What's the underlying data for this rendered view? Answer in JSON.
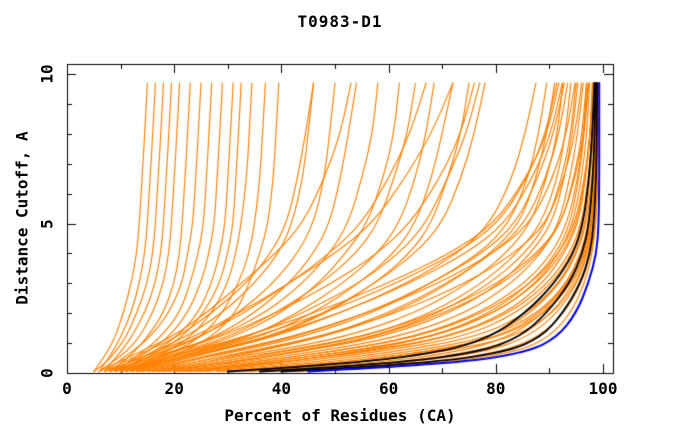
{
  "title": "T0983-D1",
  "colors": {
    "model": "#FF8000",
    "highlight": "#000000",
    "best": "#0000EE",
    "frame": "#000000",
    "background": "#FFFFFF"
  },
  "chart_data": {
    "type": "line",
    "title": "T0983-D1",
    "xlabel": "Percent of Residues (CA)",
    "ylabel": "Distance Cutoff, A",
    "xlim": [
      0,
      101.9
    ],
    "ylim": [
      0,
      10.33
    ],
    "x_major_ticks": [
      0,
      20,
      40,
      60,
      80,
      100
    ],
    "x_minor_ticks": [
      10,
      30,
      50,
      70,
      90
    ],
    "y_major_ticks": [
      0,
      5,
      10
    ],
    "y_minor_ticks": [
      1,
      2,
      3,
      4,
      6,
      7,
      8,
      9
    ],
    "grid": false,
    "legend": false,
    "distance_grid": [
      0.05,
      0.3,
      0.7,
      1.2,
      2,
      3,
      4,
      5,
      6.5,
      8,
      9.7
    ],
    "series": [
      {
        "name": "orange-01",
        "color": "model",
        "percents": [
          5,
          6,
          7.5,
          9,
          10.5,
          12,
          13,
          13.5,
          14,
          14.5,
          15
        ]
      },
      {
        "name": "orange-02",
        "color": "model",
        "percents": [
          6,
          7,
          8.5,
          10,
          12,
          13.5,
          14.5,
          15,
          15.5,
          16,
          16.5
        ]
      },
      {
        "name": "orange-03",
        "color": "model",
        "percents": [
          5,
          7,
          9,
          11,
          13,
          15,
          16,
          16.5,
          17,
          17.5,
          18
        ]
      },
      {
        "name": "orange-04",
        "color": "model",
        "percents": [
          7,
          8,
          10,
          12,
          14.5,
          16.5,
          17.5,
          18,
          18.5,
          19,
          19.5
        ]
      },
      {
        "name": "orange-05",
        "color": "model",
        "percents": [
          6,
          8,
          11,
          13.5,
          16,
          18,
          19,
          19.5,
          20,
          20.5,
          21
        ]
      },
      {
        "name": "orange-06",
        "color": "model",
        "percents": [
          8,
          10,
          12.5,
          15,
          18,
          20,
          21,
          21.5,
          22,
          22.5,
          23
        ]
      },
      {
        "name": "orange-07",
        "color": "model",
        "percents": [
          7,
          9,
          12,
          15.5,
          19,
          21.5,
          22.5,
          23.5,
          24,
          24.5,
          25
        ]
      },
      {
        "name": "orange-08",
        "color": "model",
        "percents": [
          9,
          11,
          14,
          17.5,
          21,
          23,
          24.5,
          25.5,
          26,
          26.5,
          27
        ]
      },
      {
        "name": "orange-09",
        "color": "model",
        "percents": [
          8,
          11,
          15,
          19,
          22.5,
          25,
          26.5,
          27.5,
          28,
          28.5,
          29
        ]
      },
      {
        "name": "orange-10",
        "color": "model",
        "percents": [
          10,
          12,
          16,
          20.5,
          24.5,
          27,
          28.5,
          29.5,
          30,
          30.5,
          31
        ]
      },
      {
        "name": "orange-11",
        "color": "model",
        "percents": [
          9,
          12.5,
          17,
          21.5,
          25.5,
          28.5,
          30,
          31,
          31.5,
          32,
          32.5
        ]
      },
      {
        "name": "orange-12",
        "color": "model",
        "percents": [
          11,
          14,
          18.5,
          23,
          27,
          30,
          31.5,
          32.5,
          33.5,
          34,
          34.5
        ]
      },
      {
        "name": "orange-13",
        "color": "model",
        "percents": [
          10,
          14.5,
          20,
          25,
          29,
          32,
          34,
          35,
          36,
          36.5,
          37
        ]
      },
      {
        "name": "orange-14",
        "color": "model",
        "percents": [
          12,
          16,
          21.5,
          27,
          31.5,
          34,
          36,
          37.5,
          38.5,
          39,
          39.5
        ]
      },
      {
        "name": "orange-15",
        "color": "model",
        "percents": [
          8,
          11,
          16,
          22,
          29,
          35,
          39.5,
          42,
          44,
          45,
          46
        ]
      },
      {
        "name": "orange-16",
        "color": "model",
        "percents": [
          9,
          12,
          18,
          25,
          32,
          38.5,
          43,
          46,
          48,
          49,
          50
        ]
      },
      {
        "name": "orange-17",
        "color": "model",
        "percents": [
          10,
          14,
          20,
          27.5,
          35,
          41.5,
          46,
          49,
          51,
          52.5,
          54
        ]
      },
      {
        "name": "orange-18",
        "color": "model",
        "percents": [
          8,
          12.5,
          19,
          28,
          37,
          44,
          49,
          52.5,
          55,
          57,
          58
        ]
      },
      {
        "name": "orange-19",
        "color": "model",
        "percents": [
          11,
          15,
          22,
          31,
          40,
          47,
          52,
          56,
          59,
          61,
          62
        ]
      },
      {
        "name": "orange-20",
        "color": "model",
        "percents": [
          9,
          14,
          21,
          30,
          39,
          47.5,
          54,
          58,
          61,
          63.5,
          65
        ]
      },
      {
        "name": "orange-21",
        "color": "model",
        "percents": [
          12,
          17,
          24,
          34,
          43,
          51.5,
          58,
          62,
          65,
          67,
          68.5
        ]
      },
      {
        "name": "orange-22",
        "color": "model",
        "percents": [
          10,
          15.5,
          25,
          36,
          46,
          54.5,
          61,
          65,
          68,
          70,
          72
        ]
      },
      {
        "name": "orange-23",
        "color": "model",
        "percents": [
          13,
          18,
          27,
          38,
          48.5,
          57.5,
          64,
          68,
          71,
          73.5,
          75
        ]
      },
      {
        "name": "orange-24",
        "color": "model",
        "percents": [
          11,
          16.5,
          26,
          37.5,
          48,
          57.5,
          65,
          70,
          73.5,
          76,
          78
        ]
      },
      {
        "name": "orange-25",
        "color": "model",
        "percents": [
          7,
          10,
          14.5,
          20.5,
          27,
          33.5,
          38,
          41,
          43,
          44.5,
          46
        ]
      },
      {
        "name": "orange-26",
        "color": "model",
        "percents": [
          6,
          9,
          13.5,
          19.5,
          26,
          32.5,
          39,
          44,
          48,
          51,
          53
        ]
      },
      {
        "name": "orange-27",
        "color": "model",
        "percents": [
          8,
          12,
          17.5,
          24.5,
          33,
          41.5,
          49,
          55,
          60,
          64,
          67
        ]
      },
      {
        "name": "orange-28",
        "color": "model",
        "percents": [
          7,
          11,
          16.5,
          23.5,
          32,
          41.5,
          50,
          57,
          63,
          68,
          72
        ]
      },
      {
        "name": "orange-29",
        "color": "model",
        "percents": [
          9,
          13,
          19.5,
          28.5,
          39,
          49.5,
          58,
          64,
          69.5,
          73.5,
          76
        ]
      },
      {
        "name": "orange-30",
        "color": "model",
        "percents": [
          10,
          15,
          23,
          33.5,
          44,
          54.5,
          62,
          67,
          71,
          74.5,
          77
        ]
      },
      {
        "name": "orange-31",
        "color": "model",
        "percents": [
          12,
          18,
          27,
          38.5,
          51,
          63.5,
          73,
          79,
          83,
          85.5,
          87.5
        ]
      },
      {
        "name": "orange-32",
        "color": "model",
        "percents": [
          14,
          20,
          31,
          44,
          57,
          68,
          77,
          82.5,
          86,
          88,
          89.5
        ]
      },
      {
        "name": "orange-33",
        "color": "model",
        "percents": [
          13,
          22,
          34,
          48,
          61,
          71.5,
          79,
          84.5,
          87.5,
          89.5,
          91
        ]
      },
      {
        "name": "orange-34",
        "color": "model",
        "percents": [
          15,
          24,
          37,
          52,
          65,
          75,
          82,
          86.5,
          89.5,
          91.5,
          92.5
        ]
      },
      {
        "name": "orange-35",
        "color": "model",
        "percents": [
          16,
          26,
          40,
          55.5,
          68,
          77.5,
          84,
          88.5,
          91.5,
          93,
          94
        ]
      },
      {
        "name": "orange-36",
        "color": "model",
        "percents": [
          18,
          28,
          43,
          59,
          71.5,
          81,
          86.5,
          90.5,
          92.8,
          94.3,
          95.3
        ]
      },
      {
        "name": "orange-37",
        "color": "model",
        "percents": [
          17,
          30,
          46,
          62,
          74.5,
          83,
          88.5,
          91.8,
          93.8,
          95.3,
          96.3
        ]
      },
      {
        "name": "orange-38",
        "color": "model",
        "percents": [
          20,
          32,
          49,
          65,
          77,
          85.5,
          90.5,
          93.3,
          95.3,
          96.4,
          97
        ]
      },
      {
        "name": "orange-39",
        "color": "model",
        "percents": [
          22,
          35,
          52,
          68,
          80,
          87.5,
          91.8,
          94.4,
          96,
          97,
          97.5
        ]
      },
      {
        "name": "orange-40",
        "color": "model",
        "percents": [
          21,
          37,
          55,
          71,
          82,
          88.8,
          92.8,
          95.4,
          96.8,
          97.6,
          98
        ]
      },
      {
        "name": "orange-41",
        "color": "model",
        "percents": [
          24,
          40,
          58,
          74,
          84,
          90.5,
          94.3,
          96.2,
          97.3,
          98,
          98.4
        ]
      },
      {
        "name": "orange-42",
        "color": "model",
        "percents": [
          26,
          43,
          61,
          76.5,
          86,
          91.8,
          94.9,
          96.7,
          97.6,
          98.25,
          98.65
        ]
      },
      {
        "name": "orange-43",
        "color": "model",
        "percents": [
          28,
          46,
          64,
          79,
          88,
          93.2,
          95.9,
          97.3,
          98.05,
          98.55,
          98.85
        ]
      },
      {
        "name": "orange-44",
        "color": "model",
        "percents": [
          30,
          49,
          67,
          81,
          89.3,
          94.2,
          96.6,
          97.75,
          98.4,
          98.75,
          98.95
        ]
      },
      {
        "name": "orange-45",
        "color": "model",
        "percents": [
          33,
          52,
          70,
          83.5,
          90.8,
          95,
          97,
          98,
          98.6,
          98.9,
          99.05
        ]
      },
      {
        "name": "orange-46",
        "color": "model",
        "percents": [
          25,
          38,
          54,
          68,
          79,
          86.5,
          91.3,
          93.9,
          95.5,
          96.5,
          97.3
        ]
      },
      {
        "name": "orange-47",
        "color": "model",
        "percents": [
          19,
          29,
          43,
          57,
          69.5,
          79,
          85.5,
          89.5,
          92.3,
          94,
          95
        ]
      },
      {
        "name": "orange-48",
        "color": "model",
        "percents": [
          16,
          24,
          35,
          47.5,
          60,
          71,
          79.5,
          85.5,
          89.3,
          91.8,
          93.4
        ]
      },
      {
        "name": "orange-49",
        "color": "model",
        "percents": [
          14,
          20,
          30,
          42.5,
          56,
          68,
          77.5,
          83.8,
          87.8,
          90.8,
          92.8
        ]
      },
      {
        "name": "orange-50",
        "color": "model",
        "percents": [
          12,
          17,
          26,
          37.5,
          51,
          64,
          74.5,
          81.8,
          86.8,
          90.3,
          92.4
        ]
      },
      {
        "name": "orange-51",
        "color": "model",
        "percents": [
          11,
          16,
          24,
          35,
          48,
          61.5,
          72.5,
          80.5,
          85.8,
          89.3,
          91.4
        ]
      },
      {
        "name": "orange-52",
        "color": "model",
        "percents": [
          10,
          14.5,
          22,
          33,
          46,
          60,
          71.5,
          79.8,
          85.6,
          89.6,
          91.8
        ]
      },
      {
        "name": "orange-53",
        "color": "model",
        "percents": [
          13,
          19,
          29,
          42,
          56,
          69.5,
          79.5,
          86.5,
          90.6,
          93.2,
          94.8
        ]
      },
      {
        "name": "orange-54",
        "color": "model",
        "percents": [
          15,
          22,
          33,
          47,
          61.5,
          74.5,
          83.5,
          89.5,
          92.7,
          94.8,
          96
        ]
      },
      {
        "name": "orange-55",
        "color": "model",
        "percents": [
          17,
          26,
          39,
          55,
          69,
          80.5,
          87.7,
          92.2,
          94.8,
          96.4,
          97.3
        ]
      },
      {
        "name": "orange-56",
        "color": "model",
        "percents": [
          20,
          32,
          49,
          65.5,
          77.7,
          86.7,
          91.8,
          94.8,
          96.55,
          97.6,
          98.1
        ]
      },
      {
        "name": "orange-57",
        "color": "model",
        "percents": [
          23,
          37,
          56,
          71.5,
          82.7,
          89.8,
          93.8,
          96,
          97.3,
          98,
          98.45
        ]
      },
      {
        "name": "orange-58",
        "color": "model",
        "percents": [
          31,
          52,
          69,
          79,
          86.5,
          92,
          95.2,
          96.9,
          98,
          98.5,
          98.8
        ]
      },
      {
        "name": "orange-59",
        "color": "model",
        "percents": [
          34,
          56,
          73,
          82.5,
          89,
          93.6,
          96.3,
          97.7,
          98.5,
          98.85,
          99
        ]
      },
      {
        "name": "orange-60",
        "color": "model",
        "percents": [
          38,
          62,
          78,
          86,
          91.5,
          95.2,
          97.2,
          98.2,
          98.8,
          99,
          99.05
        ]
      },
      {
        "name": "orange-61",
        "color": "model",
        "percents": [
          29,
          49,
          67,
          80.5,
          88.5,
          93.4,
          95.9,
          97.4,
          98.3,
          98.7,
          98.9
        ]
      },
      {
        "name": "orange-62",
        "color": "model",
        "percents": [
          18,
          28,
          42,
          57.5,
          70.5,
          81.5,
          88.2,
          92.2,
          94.6,
          96.1,
          96.9
        ]
      },
      {
        "name": "orange-63",
        "color": "model",
        "percents": [
          22,
          34,
          52,
          68.5,
          79.8,
          87.8,
          92.4,
          95.1,
          96.7,
          97.7,
          98.2
        ]
      },
      {
        "name": "orange-64",
        "color": "model",
        "percents": [
          36,
          59,
          76,
          84.5,
          90.5,
          94.5,
          96.8,
          97.9,
          98.6,
          98.9,
          99
        ]
      },
      {
        "name": "orange-65",
        "color": "model",
        "percents": [
          41,
          66,
          81,
          88,
          92.8,
          96,
          97.8,
          98.6,
          99,
          99.05,
          99.1
        ]
      },
      {
        "name": "orange-66",
        "color": "model",
        "percents": [
          43,
          69,
          84,
          90,
          94,
          96.6,
          98,
          98.7,
          99,
          99.05,
          99.05
        ]
      },
      {
        "name": "black-1",
        "color": "highlight",
        "percents": [
          40,
          66,
          82,
          88.5,
          92.5,
          95.8,
          97.6,
          98.3,
          98.7,
          98.85,
          98.9
        ]
      },
      {
        "name": "black-2",
        "color": "highlight",
        "percents": [
          36,
          60,
          77,
          84.5,
          89.5,
          93.8,
          96.2,
          97.4,
          98.1,
          98.45,
          98.6
        ]
      },
      {
        "name": "black-3",
        "color": "highlight",
        "percents": [
          30,
          52,
          70,
          79,
          85.5,
          91,
          94.5,
          96.3,
          97.4,
          98,
          98.4
        ]
      },
      {
        "name": "blue-best",
        "color": "best",
        "percents": [
          45,
          72,
          86,
          91.5,
          95,
          97.3,
          98.8,
          99.2,
          99.3,
          99.3,
          99.3
        ]
      }
    ]
  }
}
